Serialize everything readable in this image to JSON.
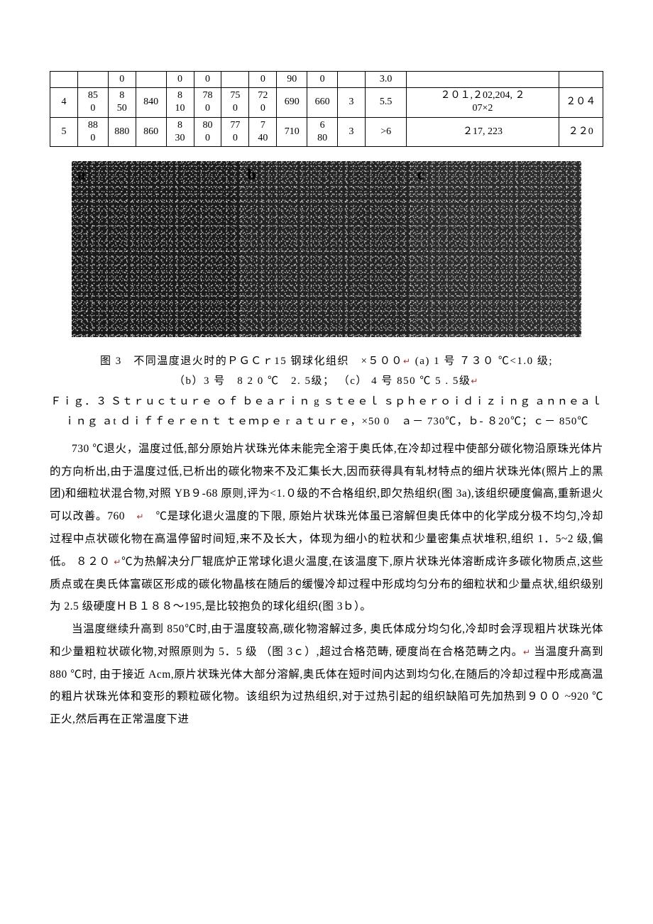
{
  "table": {
    "rows": [
      {
        "c0": "",
        "c1": "",
        "c2": "0",
        "c3": "",
        "c4": "0",
        "c5": "0",
        "c6": "",
        "c7": "0",
        "c8": "90",
        "c9": "0",
        "c10": "",
        "c11": "3.0",
        "c12": "",
        "c13": ""
      },
      {
        "c0": "4",
        "c1": "850",
        "c2": "850",
        "c3": "840",
        "c4": "810",
        "c5": "780",
        "c6": "750",
        "c7": "720",
        "c8": "690",
        "c9": "660",
        "c10": "3",
        "c11": "5.5",
        "c12": "201,202,204,207×2",
        "c13": "204"
      },
      {
        "c0": "5",
        "c1": "880",
        "c2": "880",
        "c3": "860",
        "c4": "830",
        "c5": "800",
        "c6": "770",
        "c7": "740",
        "c8": "710",
        "c9": "680",
        "c10": "3",
        "c11": ">6",
        "c12": "217,223",
        "c13": "220"
      }
    ],
    "widths": [
      "5.0%",
      "5.5%",
      "5.0%",
      "5.5%",
      "5.0%",
      "5.0%",
      "5.0%",
      "5.0%",
      "5.5%",
      "5.5%",
      "5.0%",
      "7.5%",
      "27.5%",
      "8.0%"
    ]
  },
  "micrograph": {
    "labels": {
      "a": "a",
      "b": "b",
      "c": "c"
    }
  },
  "caption": {
    "line1": "图 3　不同温度退火时的ＰＧＣｒ15 钢球化组织　×５００",
    "line1b": "(a) 1 号 ７３０ ℃<1.0 级;",
    "line2a": "（b）3 号　8 2 0 ℃　2. 5级；   （c）  4 号 850 ℃    5 . 5级",
    "line2b": "Ｆｉｇ．３ Ｓｔｒｕｃｔｕｒｅ  ｏｆ  ｂｅａｒｉｎ g ｓｔｅｅｌ  ｓｐｈｅｒｏｉｄｉｚｉｎｇ    ａｎｎｅａｌｉｎｇ    ａt ｄｉｆｆｅｒｅｎｔ  ｔｅｍｐｅ r ａｔｕｒｅ，×50 0　ａ－ 730℃，ｂ‐ ８20℃；ｃ－ 850℃"
  },
  "paragraphs": {
    "p1": "730 ℃退火，温度过低,部分原始片状珠光体未能完全溶于奥氏体,在冷却过程中使部分碳化物沿原珠光体片的方向析出,由于温度过低,已析出的碳化物来不及汇集长大,因而获得具有轧材特点的细片状珠光体(照片上的黑团)和细粒状混合物,对照 YB９‐68 原则,评为<1.０级的不合格组织,即欠热组织(图 3a),该组织硬度偏高,重新退火可以改善。760　",
    "p1b": "　℃是球化退火温度的下限, 原始片状珠光体虽已溶解但奥氏体中的化学成分极不均匀,冷却过程中点状碳化物在高温停留时间短,来不及长大，体现为细小的粒状和少量密集点状堆积,组织 1．5~2 级,偏低。 ８２０   ",
    "p1c": "℃为热解决分厂辊底炉正常球化退火温度,在该温度下,原片状珠光体溶断成许多碳化物质点,这些质点或在奥氏体富碳区形成的碳化物晶核在随后的缓慢冷却过程中形成均匀分布的细粒状和少量点状,组织级别为 2.5 级硬度ＨＢ１８８～195,是比较抱负的球化组织(图 3ｂ）。",
    "p2a": "当温度继续升高到 850℃时,由于温度较高,碳化物溶解过多, 奥氏体成分均匀化,冷却时会浮现粗片状珠光体和少量粗粒状碳化物,对照原则为 5．5 级 （图 3ｃ）,超过合格范畴, 硬度尚在合格范畴之内。",
    "p2b": "   当温度升高到 880 ℃时,  由于接近 Acm,原片状珠光体大部分溶解,奥氏体在短时间内达到均匀化,在随后的冷却过程中形成高温的粗片状珠光体和变形的颗粒碳化物。该组织为过热组织,对于过热引起的组织缺陷可先加热到９００ ~920   ℃正火,然后再在正常温度下进"
  },
  "glyphs": {
    "red": "↵"
  }
}
